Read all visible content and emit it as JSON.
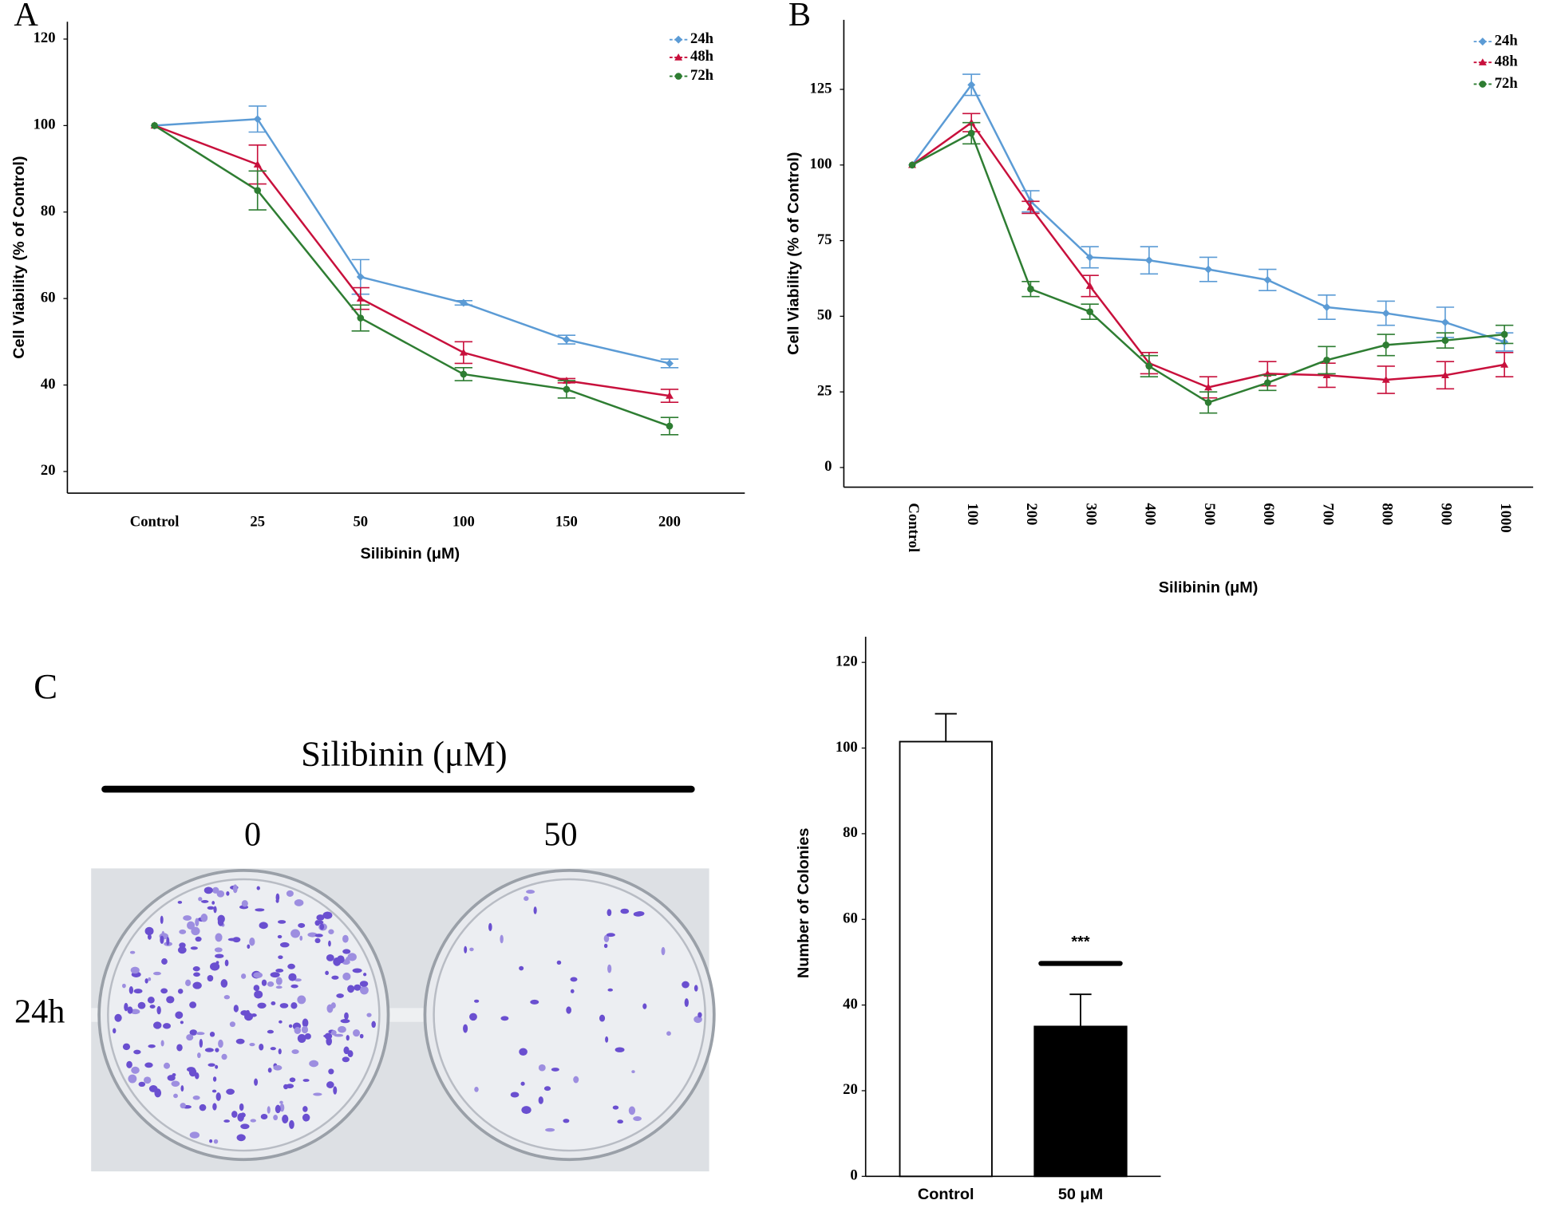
{
  "panel_labels": [
    "A",
    "B",
    "C"
  ],
  "photo": {
    "title": "Silibinin (μM)",
    "columns": [
      "0",
      "50"
    ],
    "row": "24h"
  },
  "chart_data": [
    {
      "type": "line",
      "x_label": "Silibinin (μM)",
      "y_label": "Cell Viability (% of Control)",
      "categories": [
        "Control",
        "25",
        "50",
        "100",
        "150",
        "200"
      ],
      "ylim": [
        15,
        124
      ],
      "yticks": [
        20,
        40,
        60,
        80,
        100,
        120
      ],
      "series": [
        {
          "name": "24h",
          "color": "#5b9bd5",
          "marker": "diamond",
          "values": [
            100,
            101.5,
            65,
            59,
            50.5,
            45
          ],
          "errors": [
            0,
            3,
            4,
            0.5,
            1,
            1
          ]
        },
        {
          "name": "48h",
          "color": "#c8103c",
          "marker": "triangle",
          "values": [
            100,
            91,
            60,
            47.5,
            41,
            37.5
          ],
          "errors": [
            0,
            4.5,
            2.5,
            2.5,
            0.5,
            1.5
          ]
        },
        {
          "name": "72h",
          "color": "#2e7d32",
          "marker": "circle",
          "values": [
            100,
            85,
            55.5,
            42.5,
            39,
            30.5
          ],
          "errors": [
            0,
            4.5,
            3,
            1.5,
            2,
            2
          ]
        }
      ]
    },
    {
      "type": "line",
      "x_label": "Silibinin (μM)",
      "y_label": "Cell Viability (% of Control)",
      "categories": [
        "Control",
        "100",
        "200",
        "300",
        "400",
        "500",
        "600",
        "700",
        "800",
        "900",
        "1000"
      ],
      "ylim": [
        -6.5,
        148
      ],
      "yticks": [
        0,
        25,
        50,
        75,
        100,
        125
      ],
      "series": [
        {
          "name": "24h",
          "color": "#5b9bd5",
          "marker": "diamond",
          "values": [
            100,
            126.5,
            88,
            69.5,
            68.5,
            65.5,
            62,
            53,
            51,
            48,
            41.5
          ],
          "errors": [
            0,
            3.5,
            3.5,
            3.5,
            4.5,
            4,
            3.5,
            4,
            4,
            5,
            3
          ]
        },
        {
          "name": "48h",
          "color": "#c8103c",
          "marker": "triangle",
          "values": [
            100,
            114,
            86,
            60,
            34.5,
            26.5,
            31,
            30.5,
            29,
            30.5,
            34
          ],
          "errors": [
            0,
            3,
            2,
            3.5,
            3.5,
            3.5,
            4,
            4,
            4.5,
            4.5,
            4
          ]
        },
        {
          "name": "72h",
          "color": "#2e7d32",
          "marker": "circle",
          "values": [
            100,
            110.5,
            59,
            51.5,
            33.5,
            21.5,
            28,
            35.5,
            40.5,
            42,
            44
          ],
          "errors": [
            0,
            3.5,
            2.5,
            2.5,
            3.5,
            3.5,
            2.5,
            4.5,
            3.5,
            2.5,
            3
          ]
        }
      ]
    },
    {
      "type": "bar",
      "y_label": "Number of Colonies",
      "categories": [
        "Control",
        "50 μM"
      ],
      "values": [
        101.5,
        35
      ],
      "errors": [
        6.5,
        7.5
      ],
      "colors": [
        "#ffffff",
        "#000000"
      ],
      "annotation": "***",
      "ylim": [
        0,
        126
      ],
      "yticks": [
        0,
        20,
        40,
        60,
        80,
        100,
        120
      ]
    }
  ]
}
